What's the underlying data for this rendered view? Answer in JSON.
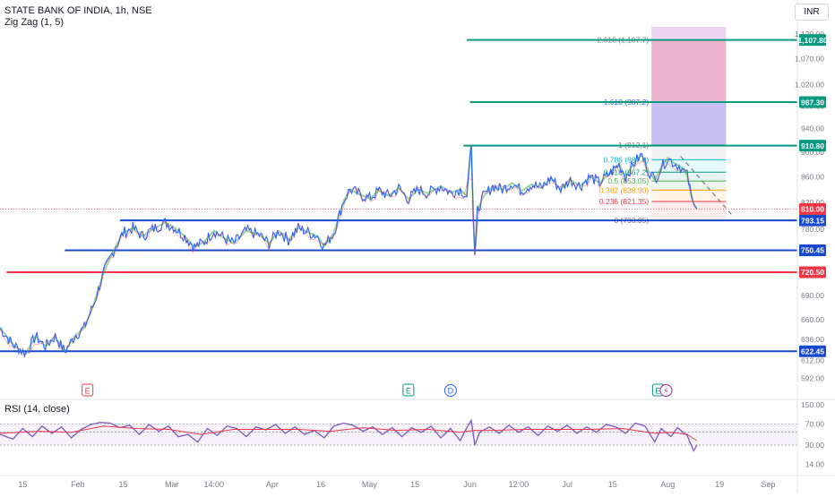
{
  "header": {
    "symbol": "STATE BANK OF INDIA, 1h, NSE",
    "indicator": "Zig Zag (1, 5)",
    "currency": "INR",
    "rsi_label": "RSI (14, close)"
  },
  "chart_data": [
    {
      "type": "line",
      "title": "",
      "y_scale": "log",
      "ylim": [
        575,
        1135
      ],
      "y_ticks": [
        1120,
        1070,
        1020,
        980,
        940,
        900,
        860,
        820,
        780,
        750,
        690,
        660,
        636,
        612,
        592
      ],
      "x_ticks": [
        "15",
        "Feb",
        "15",
        "Mar",
        "14:00",
        "Apr",
        "16",
        "May",
        "15",
        "Jun",
        "12:00",
        "Jul",
        "15",
        "Aug",
        "19",
        "Sep"
      ],
      "x_tick_day": [
        15,
        32,
        46,
        61,
        74,
        92,
        107,
        122,
        136,
        153,
        168,
        183,
        197,
        214,
        230,
        245
      ],
      "x_range_day": [
        8,
        254
      ],
      "price_series": {
        "name": "",
        "color": "#2962ff",
        "points": [
          [
            8,
            650
          ],
          [
            12,
            630
          ],
          [
            16,
            620
          ],
          [
            19,
            640
          ],
          [
            22,
            628
          ],
          [
            25,
            640
          ],
          [
            28,
            622
          ],
          [
            31,
            640
          ],
          [
            34,
            650
          ],
          [
            37,
            680
          ],
          [
            40,
            720
          ],
          [
            43,
            750
          ],
          [
            46,
            775
          ],
          [
            49,
            782
          ],
          [
            52,
            770
          ],
          [
            55,
            780
          ],
          [
            59,
            790
          ],
          [
            62,
            782
          ],
          [
            65,
            770
          ],
          [
            68,
            755
          ],
          [
            71,
            762
          ],
          [
            74,
            778
          ],
          [
            77,
            768
          ],
          [
            80,
            760
          ],
          [
            84,
            778
          ],
          [
            88,
            772
          ],
          [
            91,
            760
          ],
          [
            94,
            778
          ],
          [
            97,
            765
          ],
          [
            100,
            782
          ],
          [
            103,
            776
          ],
          [
            106,
            770
          ],
          [
            108,
            756
          ],
          [
            111,
            775
          ],
          [
            114,
            822
          ],
          [
            116,
            840
          ],
          [
            119,
            832
          ],
          [
            122,
            826
          ],
          [
            125,
            838
          ],
          [
            128,
            830
          ],
          [
            131,
            842
          ],
          [
            134,
            825
          ],
          [
            137,
            840
          ],
          [
            140,
            834
          ],
          [
            144,
            845
          ],
          [
            147,
            835
          ],
          [
            150,
            840
          ],
          [
            152,
            830
          ],
          [
            153.4,
            912
          ],
          [
            154,
            800
          ],
          [
            154.5,
            744
          ],
          [
            155.3,
            808
          ],
          [
            157,
            828
          ],
          [
            160,
            845
          ],
          [
            163,
            840
          ],
          [
            166,
            850
          ],
          [
            169,
            838
          ],
          [
            172,
            848
          ],
          [
            175,
            842
          ],
          [
            178,
            858
          ],
          [
            181,
            840
          ],
          [
            184,
            855
          ],
          [
            187,
            845
          ],
          [
            190,
            860
          ],
          [
            193,
            850
          ],
          [
            196,
            865
          ],
          [
            199,
            880
          ],
          [
            201,
            860
          ],
          [
            204,
            885
          ],
          [
            206,
            895
          ],
          [
            208,
            870
          ],
          [
            210,
            855
          ],
          [
            212,
            875
          ],
          [
            214,
            890
          ],
          [
            216,
            882
          ],
          [
            218,
            876
          ],
          [
            220,
            862
          ],
          [
            221.3,
            830
          ],
          [
            222,
            818
          ],
          [
            223,
            810
          ]
        ]
      },
      "rsi_color": "#7e57c2",
      "rsi_ma_color": "#f23645",
      "rsi": {
        "ylim": [
          10,
          160
        ],
        "y_ticks": [
          150,
          70,
          30,
          14
        ],
        "band_lines": [
          70,
          50,
          30
        ],
        "points": [
          [
            8,
            46
          ],
          [
            12,
            38
          ],
          [
            15,
            58
          ],
          [
            18,
            42
          ],
          [
            21,
            64
          ],
          [
            24,
            48
          ],
          [
            27,
            62
          ],
          [
            30,
            40
          ],
          [
            33,
            56
          ],
          [
            36,
            68
          ],
          [
            39,
            74
          ],
          [
            42,
            72
          ],
          [
            45,
            60
          ],
          [
            48,
            66
          ],
          [
            51,
            46
          ],
          [
            54,
            68
          ],
          [
            57,
            52
          ],
          [
            60,
            64
          ],
          [
            63,
            42
          ],
          [
            66,
            46
          ],
          [
            69,
            34
          ],
          [
            72,
            58
          ],
          [
            75,
            44
          ],
          [
            78,
            64
          ],
          [
            81,
            58
          ],
          [
            84,
            42
          ],
          [
            87,
            62
          ],
          [
            90,
            55
          ],
          [
            93,
            68
          ],
          [
            96,
            48
          ],
          [
            99,
            62
          ],
          [
            102,
            46
          ],
          [
            105,
            54
          ],
          [
            108,
            40
          ],
          [
            111,
            64
          ],
          [
            114,
            72
          ],
          [
            117,
            66
          ],
          [
            120,
            52
          ],
          [
            123,
            62
          ],
          [
            126,
            46
          ],
          [
            129,
            60
          ],
          [
            132,
            42
          ],
          [
            135,
            60
          ],
          [
            138,
            50
          ],
          [
            141,
            64
          ],
          [
            144,
            40
          ],
          [
            147,
            58
          ],
          [
            150,
            36
          ],
          [
            152,
            60
          ],
          [
            153.4,
            80
          ],
          [
            154.5,
            30
          ],
          [
            156,
            50
          ],
          [
            159,
            62
          ],
          [
            162,
            48
          ],
          [
            165,
            66
          ],
          [
            168,
            50
          ],
          [
            171,
            62
          ],
          [
            174,
            44
          ],
          [
            177,
            64
          ],
          [
            180,
            52
          ],
          [
            183,
            66
          ],
          [
            186,
            48
          ],
          [
            189,
            62
          ],
          [
            192,
            50
          ],
          [
            195,
            68
          ],
          [
            198,
            62
          ],
          [
            201,
            48
          ],
          [
            204,
            72
          ],
          [
            207,
            64
          ],
          [
            210,
            34
          ],
          [
            212,
            58
          ],
          [
            215,
            42
          ],
          [
            217,
            60
          ],
          [
            220,
            44
          ],
          [
            222,
            24
          ],
          [
            223,
            30
          ]
        ],
        "ma_points": [
          [
            8,
            48
          ],
          [
            20,
            52
          ],
          [
            30,
            50
          ],
          [
            40,
            64
          ],
          [
            50,
            58
          ],
          [
            60,
            56
          ],
          [
            70,
            46
          ],
          [
            80,
            56
          ],
          [
            90,
            56
          ],
          [
            100,
            56
          ],
          [
            110,
            52
          ],
          [
            120,
            60
          ],
          [
            130,
            54
          ],
          [
            140,
            56
          ],
          [
            150,
            50
          ],
          [
            154,
            54
          ],
          [
            160,
            54
          ],
          [
            170,
            56
          ],
          [
            180,
            56
          ],
          [
            190,
            56
          ],
          [
            200,
            58
          ],
          [
            210,
            48
          ],
          [
            215,
            50
          ],
          [
            220,
            46
          ],
          [
            223,
            36
          ]
        ]
      },
      "horizontal_lines": [
        {
          "value": 1107.8,
          "label": "1,107.80",
          "color": "#089981",
          "from_day": 152
        },
        {
          "value": 987.3,
          "label": "987.30",
          "color": "#089981",
          "from_day": 153
        },
        {
          "value": 910.8,
          "label": "910.80",
          "color": "#089981",
          "from_day": 151
        },
        {
          "value": 793.15,
          "label": "793.15",
          "color": "#1848cc",
          "from_day": 45
        },
        {
          "value": 750.45,
          "label": "750.45",
          "color": "#1848cc",
          "from_day": 28
        },
        {
          "value": 720.5,
          "label": "720.50",
          "color": "#f23645",
          "from_day": 10
        },
        {
          "value": 622.45,
          "label": "622.45",
          "color": "#1848cc",
          "from_day": 8
        }
      ],
      "current_price": {
        "value": 810.0,
        "label": "810.00",
        "color": "#f23645"
      },
      "fibonacci": {
        "from_day": 209,
        "to_day": 223,
        "levels": [
          {
            "ratio": "0",
            "value": 793.05,
            "label": "0 (793.05)",
            "color": "#787b86"
          },
          {
            "ratio": "0.236",
            "value": 821.35,
            "label": "0.236 (821.35)",
            "color": "#f23645"
          },
          {
            "ratio": "0.382",
            "value": 838.9,
            "label": "0.382 (838.90)",
            "color": "#ff9800"
          },
          {
            "ratio": "0.5",
            "value": 853.05,
            "label": "0.5 (853.05)",
            "color": "#4caf50"
          },
          {
            "ratio": "0.618",
            "value": 867.2,
            "label": "0.618 (867.2)",
            "color": "#089981"
          },
          {
            "ratio": "0.786",
            "value": 887.4,
            "label": "0.786 (887.4)",
            "color": "#00bcd4"
          },
          {
            "ratio": "1",
            "value": 912.1,
            "label": "1 (912.1)",
            "color": "#787b86"
          },
          {
            "ratio": "1.618",
            "value": 987.2,
            "label": "1.618 (987.2)",
            "color": "#2962ff"
          },
          {
            "ratio": "2.618",
            "value": 1107.7,
            "label": "2.618 (1,107.7)",
            "color": "#787b86"
          }
        ]
      },
      "fib_zones": [
        {
          "from": 912,
          "to": 1135,
          "color": "#9c27b0",
          "opacity": 0.2
        },
        {
          "from": 987,
          "to": 1107.8,
          "color": "#f23645",
          "opacity": 0.2
        },
        {
          "from": 910.8,
          "to": 987,
          "color": "#2962ff",
          "opacity": 0.18
        }
      ],
      "zone_days": [
        209,
        232
      ],
      "dashed_projection": {
        "from": [
          218,
          893
        ],
        "to": [
          234,
          800
        ],
        "color": "#787b86"
      },
      "zigzag_color": "#4caf50",
      "events": [
        {
          "day": 35,
          "letter": "E",
          "color": "#f23645",
          "kind": "square"
        },
        {
          "day": 134,
          "letter": "E",
          "color": "#089981",
          "kind": "square"
        },
        {
          "day": 147,
          "letter": "D",
          "color": "#2962ff",
          "kind": "circle"
        },
        {
          "day": 211,
          "letter": "E",
          "color": "#089981",
          "kind": "square"
        },
        {
          "day": 213.5,
          "letter": "⚡",
          "color": "#9c27b0",
          "kind": "circle"
        }
      ]
    }
  ]
}
